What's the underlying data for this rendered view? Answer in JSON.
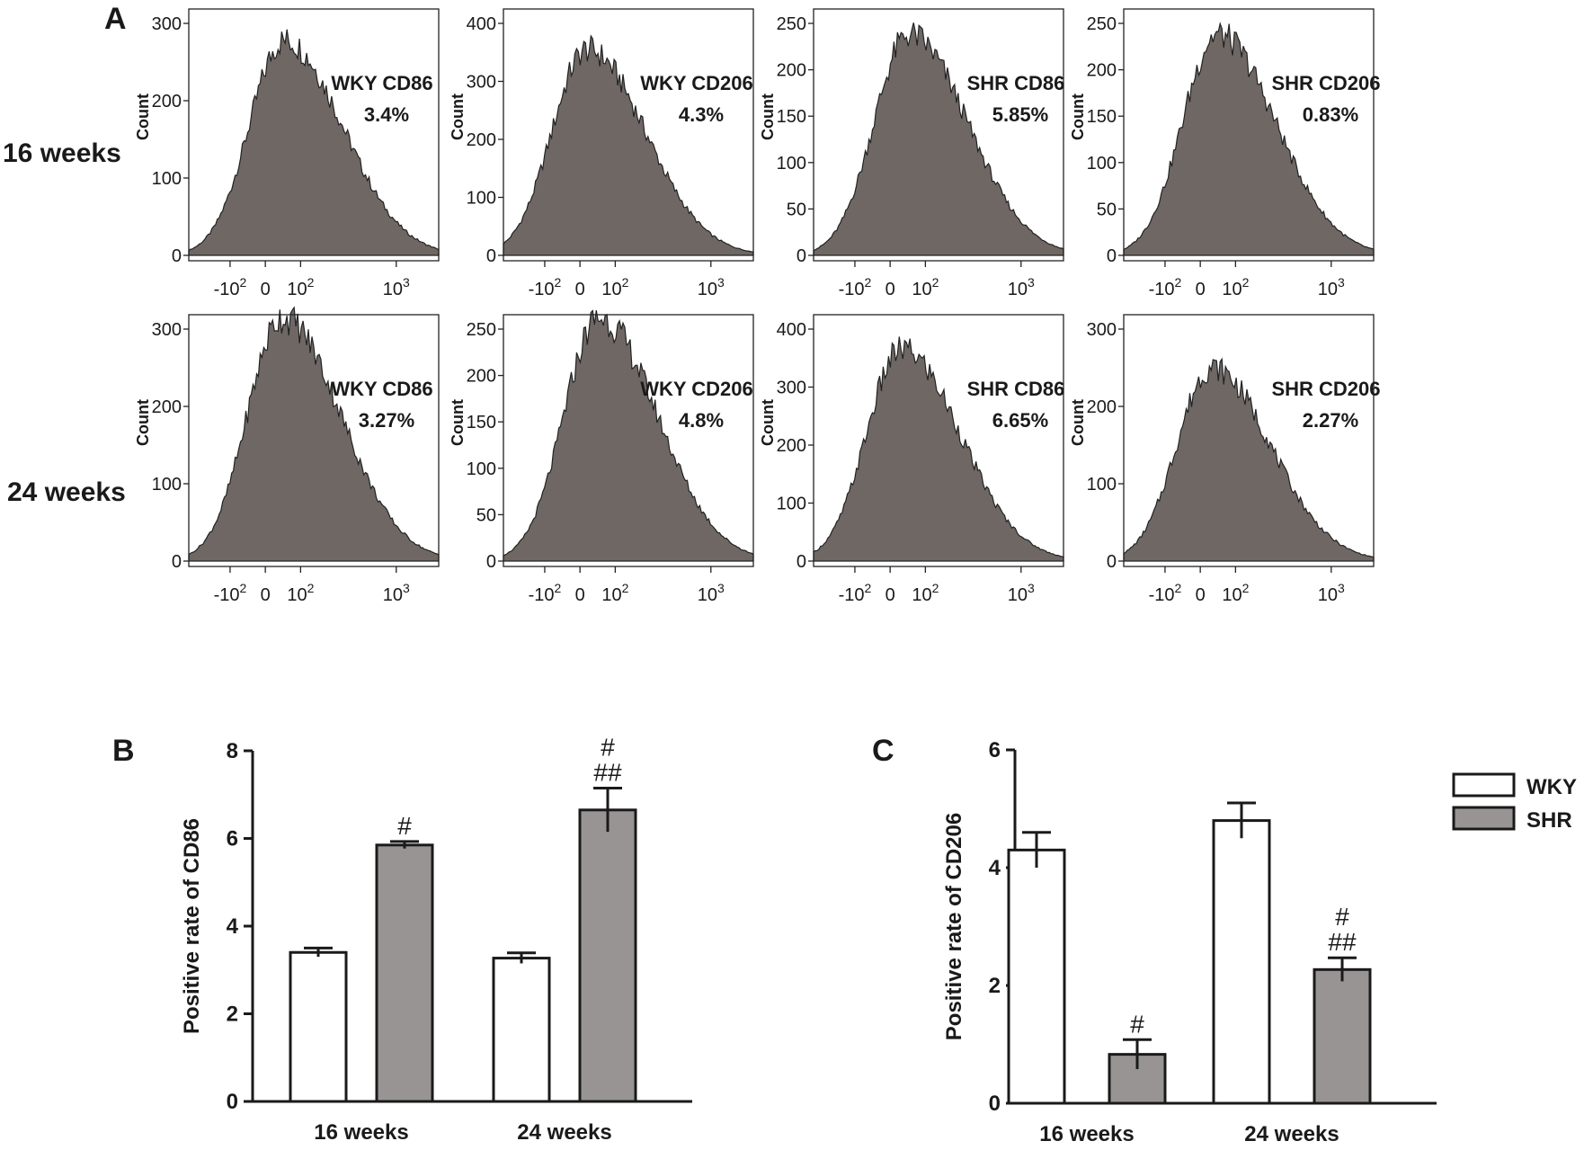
{
  "panel_labels": {
    "a": "A",
    "b": "B",
    "c": "C"
  },
  "row_labels": [
    "16 weeks",
    "24 weeks"
  ],
  "colors": {
    "histogram_fill": "#6f6764",
    "wky_bar": "#ffffff",
    "shr_bar": "#989494",
    "ink": "#1a1a1a"
  },
  "chart_data": [
    {
      "type": "area",
      "panel": "A",
      "grid": false,
      "ylabel": "Count",
      "x_scale": "biexponential",
      "x_tick_labels": [
        {
          "base": "-10",
          "exp": "2"
        },
        {
          "base": "0",
          "exp": ""
        },
        {
          "base": "10",
          "exp": "2"
        },
        {
          "base": "10",
          "exp": "3"
        }
      ],
      "x_tick_values": [
        -100,
        0,
        100,
        1000
      ],
      "histograms": [
        {
          "row": 0,
          "col": 0,
          "label": "WKY CD86",
          "percent": "3.4%",
          "ymax": 300,
          "yticks": [
            0,
            100,
            200,
            300
          ],
          "peak": 278,
          "mode": 50
        },
        {
          "row": 0,
          "col": 1,
          "label": "WKY CD206",
          "percent": "4.3%",
          "ymax": 400,
          "yticks": [
            0,
            100,
            200,
            300,
            400
          ],
          "peak": 355,
          "mode": 18
        },
        {
          "row": 0,
          "col": 2,
          "label": "SHR CD86",
          "percent": "5.85%",
          "ymax": 250,
          "yticks": [
            0,
            50,
            100,
            150,
            200,
            250
          ],
          "peak": 238,
          "mode": 50
        },
        {
          "row": 0,
          "col": 3,
          "label": "SHR CD206",
          "percent": "0.83%",
          "ymax": 250,
          "yticks": [
            0,
            50,
            100,
            150,
            200,
            250
          ],
          "peak": 238,
          "mode": 45
        },
        {
          "row": 1,
          "col": 0,
          "label": "WKY CD86",
          "percent": "3.27%",
          "ymax": 300,
          "yticks": [
            0,
            100,
            200,
            300
          ],
          "peak": 315,
          "mode": 45
        },
        {
          "row": 1,
          "col": 1,
          "label": "WKY CD206",
          "percent": "4.8%",
          "ymax": 250,
          "yticks": [
            0,
            50,
            100,
            150,
            200,
            250
          ],
          "peak": 262,
          "mode": 50
        },
        {
          "row": 1,
          "col": 2,
          "label": "SHR CD86",
          "percent": "6.65%",
          "ymax": 400,
          "yticks": [
            0,
            100,
            200,
            300,
            400
          ],
          "peak": 365,
          "mode": 30
        },
        {
          "row": 1,
          "col": 3,
          "label": "SHR CD206",
          "percent": "2.27%",
          "ymax": 300,
          "yticks": [
            0,
            100,
            200,
            300
          ],
          "peak": 250,
          "mode": 30
        }
      ]
    },
    {
      "type": "bar",
      "panel": "B",
      "categories": [
        "16 weeks",
        "24 weeks"
      ],
      "ylabel": "Positive rate of CD86",
      "ylim": [
        0,
        8
      ],
      "yticks": [
        0,
        2,
        4,
        6,
        8
      ],
      "series": [
        {
          "name": "WKY",
          "values": [
            3.4,
            3.27
          ],
          "errors": [
            0.1,
            0.12
          ],
          "annotations": [
            "",
            ""
          ]
        },
        {
          "name": "SHR",
          "values": [
            5.85,
            6.65
          ],
          "errors": [
            0.08,
            0.5
          ],
          "annotations": [
            "#",
            "#\n##"
          ]
        }
      ]
    },
    {
      "type": "bar",
      "panel": "C",
      "categories": [
        "16 weeks",
        "24 weeks"
      ],
      "ylabel": "Positive rate of CD206",
      "ylim": [
        0,
        6
      ],
      "yticks": [
        0,
        2,
        4,
        6
      ],
      "legend_position": "top-right",
      "series": [
        {
          "name": "WKY",
          "values": [
            4.3,
            4.8
          ],
          "errors": [
            0.3,
            0.3
          ],
          "annotations": [
            "",
            ""
          ]
        },
        {
          "name": "SHR",
          "values": [
            0.83,
            2.27
          ],
          "errors": [
            0.25,
            0.2
          ],
          "annotations": [
            "#",
            "#\n##"
          ]
        }
      ]
    }
  ]
}
